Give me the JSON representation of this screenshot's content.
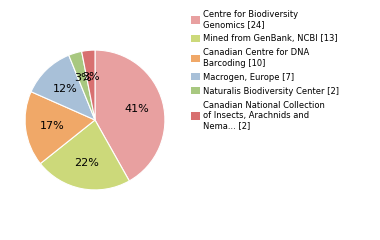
{
  "chart_data": {
    "type": "pie",
    "categories": [
      "Centre for Biodiversity\nGenomics [24]",
      "Mined from GenBank, NCBI [13]",
      "Canadian Centre for DNA\nBarcoding [10]",
      "Macrogen, Europe [7]",
      "Naturalis Biodiversity Center [2]",
      "Canadian National Collection\nof Insects, Arachnids and\nNema... [2]"
    ],
    "values": [
      41,
      22,
      17,
      12,
      3,
      3
    ],
    "value_labels": [
      "41%",
      "22%",
      "17%",
      "12%",
      "3%",
      "3%"
    ],
    "data_labels": true,
    "colors": [
      "#e8a0a0",
      "#ccd97a",
      "#f0a868",
      "#a8c0d8",
      "#a8c880",
      "#d87070"
    ],
    "legend": "upper left"
  }
}
